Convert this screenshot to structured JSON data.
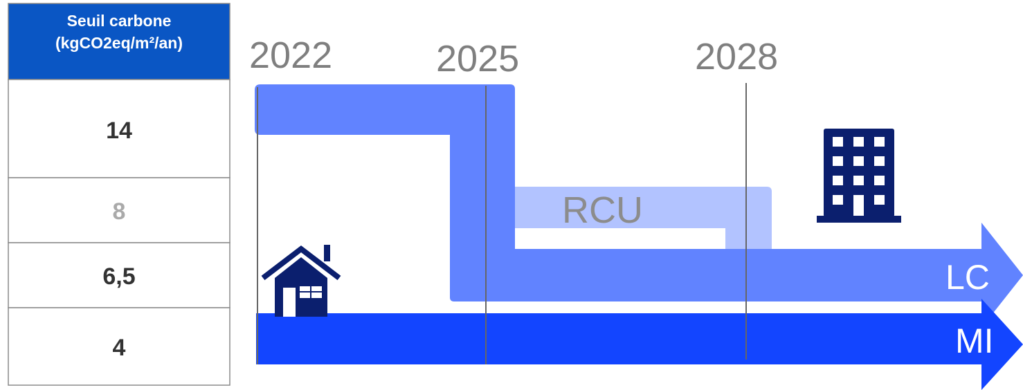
{
  "table": {
    "header_line1": "Seuil carbone",
    "header_line2": "(kgCO2eq/m²/an)",
    "thresholds": [
      {
        "label": "14",
        "color": "#333333"
      },
      {
        "label": "8",
        "color": "#aaaaaa"
      },
      {
        "label": "6,5",
        "color": "#333333"
      },
      {
        "label": "4",
        "color": "#333333"
      }
    ],
    "header_color": "#0a56c4"
  },
  "years": [
    "2022",
    "2025",
    "2028"
  ],
  "tracks": {
    "rcu_label": "RCU",
    "lc_label": "LC",
    "mi_label": "MI"
  },
  "icons": {
    "house": "house-icon",
    "building": "building-icon"
  },
  "colors": {
    "lc": "#6183ff",
    "rcu": "#b2c3ff",
    "mi": "#1345ff",
    "icon": "#0b1f6e",
    "year": "#7f7f7f"
  }
}
